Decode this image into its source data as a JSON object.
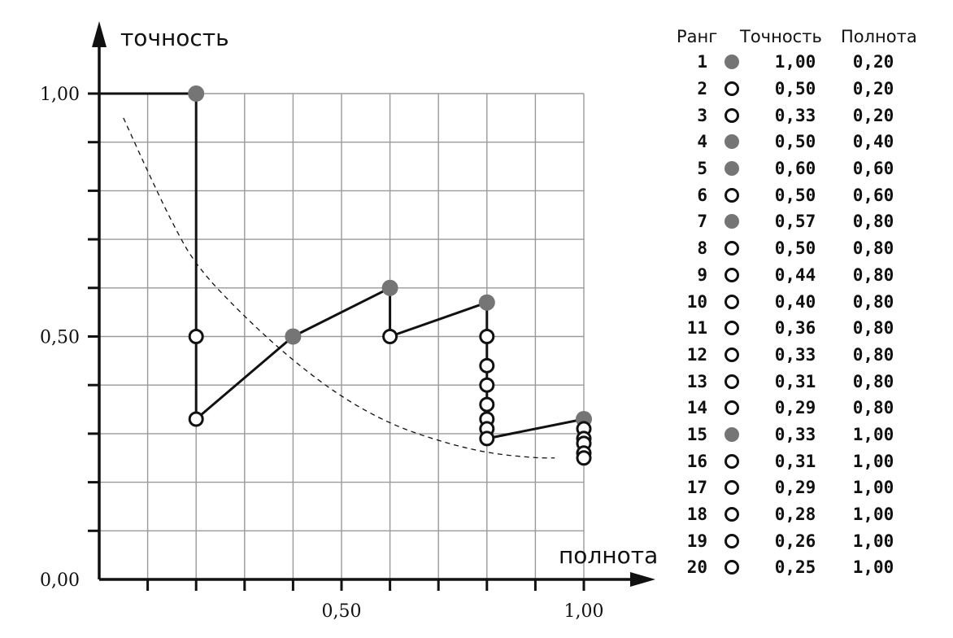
{
  "chart_data": {
    "type": "line",
    "xlabel": "полнота",
    "ylabel": "точность",
    "xlim": [
      0,
      1
    ],
    "ylim": [
      0,
      1
    ],
    "grid": true,
    "x_tick_labels": [
      {
        "value": 0.5,
        "label": "0,50"
      },
      {
        "value": 1.0,
        "label": "1,00"
      }
    ],
    "y_tick_labels": [
      {
        "value": 0.0,
        "label": "0,00"
      },
      {
        "value": 0.5,
        "label": "0,50"
      },
      {
        "value": 1.0,
        "label": "1,00"
      }
    ],
    "series": [
      {
        "points": [
          {
            "x": 0.2,
            "y": 1.0,
            "relevant": true
          },
          {
            "x": 0.2,
            "y": 0.5,
            "relevant": false
          },
          {
            "x": 0.2,
            "y": 0.33,
            "relevant": false
          },
          {
            "x": 0.4,
            "y": 0.5,
            "relevant": true
          },
          {
            "x": 0.6,
            "y": 0.6,
            "relevant": true
          },
          {
            "x": 0.6,
            "y": 0.5,
            "relevant": false
          },
          {
            "x": 0.8,
            "y": 0.57,
            "relevant": true
          },
          {
            "x": 0.8,
            "y": 0.5,
            "relevant": false
          },
          {
            "x": 0.8,
            "y": 0.44,
            "relevant": false
          },
          {
            "x": 0.8,
            "y": 0.4,
            "relevant": false
          },
          {
            "x": 0.8,
            "y": 0.36,
            "relevant": false
          },
          {
            "x": 0.8,
            "y": 0.33,
            "relevant": false
          },
          {
            "x": 0.8,
            "y": 0.31,
            "relevant": false
          },
          {
            "x": 0.8,
            "y": 0.29,
            "relevant": false
          },
          {
            "x": 1.0,
            "y": 0.33,
            "relevant": true
          },
          {
            "x": 1.0,
            "y": 0.31,
            "relevant": false
          },
          {
            "x": 1.0,
            "y": 0.29,
            "relevant": false
          },
          {
            "x": 1.0,
            "y": 0.28,
            "relevant": false
          },
          {
            "x": 1.0,
            "y": 0.26,
            "relevant": false
          },
          {
            "x": 1.0,
            "y": 0.25,
            "relevant": false
          }
        ]
      }
    ],
    "dashed_curve": [
      {
        "x": 0.05,
        "y": 0.95
      },
      {
        "x": 0.1,
        "y": 0.84
      },
      {
        "x": 0.15,
        "y": 0.735
      },
      {
        "x": 0.2,
        "y": 0.645
      },
      {
        "x": 0.3,
        "y": 0.54
      },
      {
        "x": 0.4,
        "y": 0.45
      },
      {
        "x": 0.5,
        "y": 0.375
      },
      {
        "x": 0.6,
        "y": 0.32
      },
      {
        "x": 0.7,
        "y": 0.285
      },
      {
        "x": 0.8,
        "y": 0.26
      },
      {
        "x": 0.9,
        "y": 0.25
      },
      {
        "x": 0.94,
        "y": 0.25
      }
    ]
  },
  "table": {
    "headers": {
      "rank": "Ранг",
      "precision": "Точность",
      "recall": "Полнота"
    },
    "rows": [
      {
        "rank": "1",
        "relevant": true,
        "precision": "1,00",
        "recall": "0,20"
      },
      {
        "rank": "2",
        "relevant": false,
        "precision": "0,50",
        "recall": "0,20"
      },
      {
        "rank": "3",
        "relevant": false,
        "precision": "0,33",
        "recall": "0,20"
      },
      {
        "rank": "4",
        "relevant": true,
        "precision": "0,50",
        "recall": "0,40"
      },
      {
        "rank": "5",
        "relevant": true,
        "precision": "0,60",
        "recall": "0,60"
      },
      {
        "rank": "6",
        "relevant": false,
        "precision": "0,50",
        "recall": "0,60"
      },
      {
        "rank": "7",
        "relevant": true,
        "precision": "0,57",
        "recall": "0,80"
      },
      {
        "rank": "8",
        "relevant": false,
        "precision": "0,50",
        "recall": "0,80"
      },
      {
        "rank": "9",
        "relevant": false,
        "precision": "0,44",
        "recall": "0,80"
      },
      {
        "rank": "10",
        "relevant": false,
        "precision": "0,40",
        "recall": "0,80"
      },
      {
        "rank": "11",
        "relevant": false,
        "precision": "0,36",
        "recall": "0,80"
      },
      {
        "rank": "12",
        "relevant": false,
        "precision": "0,33",
        "recall": "0,80"
      },
      {
        "rank": "13",
        "relevant": false,
        "precision": "0,31",
        "recall": "0,80"
      },
      {
        "rank": "14",
        "relevant": false,
        "precision": "0,29",
        "recall": "0,80"
      },
      {
        "rank": "15",
        "relevant": true,
        "precision": "0,33",
        "recall": "1,00"
      },
      {
        "rank": "16",
        "relevant": false,
        "precision": "0,31",
        "recall": "1,00"
      },
      {
        "rank": "17",
        "relevant": false,
        "precision": "0,29",
        "recall": "1,00"
      },
      {
        "rank": "18",
        "relevant": false,
        "precision": "0,28",
        "recall": "1,00"
      },
      {
        "rank": "19",
        "relevant": false,
        "precision": "0,26",
        "recall": "1,00"
      },
      {
        "rank": "20",
        "relevant": false,
        "precision": "0,25",
        "recall": "1,00"
      }
    ]
  },
  "colors": {
    "relevant_fill": "#757575",
    "nonrelevant_stroke": "#111111",
    "grid": "#9a9a9a",
    "line": "#111111"
  }
}
